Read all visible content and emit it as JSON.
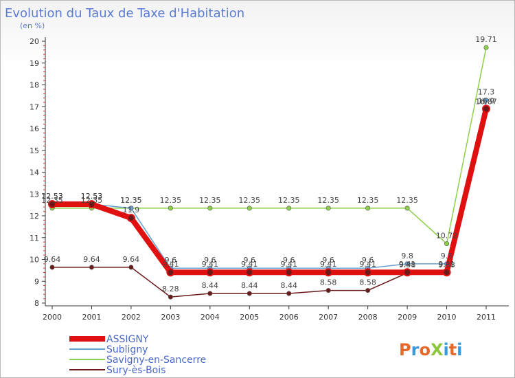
{
  "chart_data": {
    "type": "line",
    "title": "Evolution du Taux de Taxe d'Habitation",
    "subtitle": "(en %)",
    "xlabel": "",
    "ylabel": "",
    "x": [
      "2000",
      "2001",
      "2002",
      "2003",
      "2004",
      "2005",
      "2006",
      "2007",
      "2008",
      "2009",
      "2010",
      "2011"
    ],
    "ylim": [
      8,
      20
    ],
    "yticks": [
      "8",
      "9",
      "10",
      "11",
      "12",
      "13",
      "14",
      "15",
      "16",
      "17",
      "18",
      "19",
      "20"
    ],
    "grid": false,
    "legend_position": "bottom-left",
    "series": [
      {
        "name": "Sury-ès-Bois",
        "color": "#6b1a1a",
        "values": [
          9.64,
          9.64,
          9.64,
          8.28,
          8.44,
          8.44,
          8.44,
          8.58,
          8.58,
          9.38,
          9.38,
          16.87
        ],
        "labels": [
          "9.64",
          "9.64",
          "9.64",
          "8.28",
          "8.44",
          "8.44",
          "8.44",
          "8.58",
          "8.58",
          "9.38",
          "9.38",
          "16.87"
        ]
      },
      {
        "name": "Savigny-en-Sancerre",
        "color": "#8ed04a",
        "values": [
          12.35,
          12.35,
          12.35,
          12.35,
          12.35,
          12.35,
          12.35,
          12.35,
          12.35,
          12.35,
          10.72,
          19.71
        ],
        "labels": [
          "12.35",
          "12.35",
          "12.35",
          "12.35",
          "12.35",
          "12.35",
          "12.35",
          "12.35",
          "12.35",
          "12.35",
          "10.72",
          "19.71"
        ]
      },
      {
        "name": "Subligny",
        "color": "#6aa0d0",
        "values": [
          12.53,
          12.53,
          12.35,
          9.6,
          9.6,
          9.6,
          9.6,
          9.6,
          9.6,
          9.8,
          9.8,
          17.3
        ],
        "labels": [
          "12.53",
          "12.53",
          "12.35",
          "9.6",
          "9.6",
          "9.6",
          "9.6",
          "9.6",
          "9.6",
          "9.8",
          "9.8",
          "17.3"
        ]
      },
      {
        "name": "ASSIGNY",
        "color": "#e01010",
        "values": [
          12.53,
          12.53,
          11.9,
          9.41,
          9.41,
          9.41,
          9.41,
          9.41,
          9.41,
          9.41,
          9.41,
          16.9
        ],
        "labels": [
          "12.53",
          "12.53",
          "11.9",
          "9.41",
          "9.41",
          "9.41",
          "9.41",
          "9.41",
          "9.41",
          "9.41",
          "9.41",
          "16.9"
        ]
      }
    ],
    "legend": [
      "ASSIGNY",
      "Subligny",
      "Savigny-en-Sancerre",
      "Sury-ès-Bois"
    ]
  },
  "logo": {
    "text": "ProXiti",
    "colors": [
      "#e4692a",
      "#3a9ad9",
      "#e4692a",
      "#8cc63f",
      "#3a9ad9",
      "#e4692a",
      "#3a9ad9"
    ]
  }
}
